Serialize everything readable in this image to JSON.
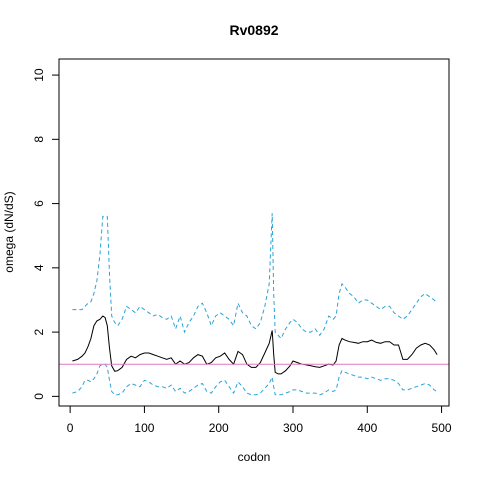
{
  "chart_data": {
    "type": "line",
    "title": "Rv0892",
    "xlabel": "codon",
    "ylabel": "omega (dN/dS)",
    "xlim": [
      -15,
      510
    ],
    "ylim": [
      -0.3,
      10.5
    ],
    "x_ticks": [
      0,
      100,
      200,
      300,
      400,
      500
    ],
    "y_ticks": [
      0,
      2,
      4,
      6,
      8,
      10
    ],
    "reference_line": {
      "y": 1,
      "color": "#e377c2"
    },
    "colors": {
      "omega": "#000000",
      "bounds": "#29a3d9"
    },
    "series": [
      {
        "style": "solid",
        "x": [
          3,
          10,
          16,
          20,
          24,
          28,
          32,
          36,
          40,
          44,
          47,
          50,
          53,
          56,
          60,
          64,
          70,
          76,
          82,
          88,
          94,
          100,
          106,
          112,
          118,
          124,
          130,
          136,
          142,
          148,
          154,
          160,
          166,
          172,
          178,
          184,
          190,
          196,
          202,
          208,
          214,
          220,
          226,
          232,
          238,
          244,
          250,
          256,
          262,
          268,
          272,
          274,
          276,
          280,
          284,
          290,
          296,
          300,
          306,
          312,
          318,
          324,
          330,
          336,
          342,
          348,
          354,
          358,
          362,
          366,
          370,
          376,
          382,
          388,
          394,
          400,
          406,
          412,
          418,
          424,
          430,
          436,
          442,
          448,
          454,
          460,
          466,
          472,
          478,
          484,
          490,
          494
        ],
        "y": [
          1.1,
          1.15,
          1.25,
          1.35,
          1.55,
          1.8,
          2.2,
          2.35,
          2.4,
          2.5,
          2.45,
          2.2,
          1.5,
          0.95,
          0.78,
          0.8,
          0.9,
          1.15,
          1.25,
          1.2,
          1.3,
          1.35,
          1.35,
          1.3,
          1.25,
          1.2,
          1.15,
          1.2,
          1.0,
          1.1,
          1.0,
          1.05,
          1.2,
          1.3,
          1.25,
          1.0,
          1.05,
          1.2,
          1.25,
          1.35,
          1.15,
          1.0,
          1.4,
          1.3,
          1.0,
          0.9,
          0.9,
          1.05,
          1.35,
          1.65,
          2.05,
          1.3,
          0.75,
          0.7,
          0.7,
          0.8,
          0.95,
          1.1,
          1.05,
          1.0,
          0.98,
          0.95,
          0.92,
          0.9,
          0.95,
          1.0,
          0.98,
          1.1,
          1.6,
          1.8,
          1.75,
          1.7,
          1.68,
          1.65,
          1.7,
          1.7,
          1.75,
          1.68,
          1.65,
          1.7,
          1.7,
          1.6,
          1.6,
          1.15,
          1.15,
          1.3,
          1.5,
          1.6,
          1.65,
          1.6,
          1.45,
          1.3
        ]
      },
      {
        "style": "dashed",
        "x": [
          3,
          10,
          16,
          20,
          24,
          28,
          32,
          36,
          40,
          44,
          47,
          50,
          53,
          56,
          60,
          64,
          70,
          76,
          82,
          88,
          94,
          100,
          106,
          112,
          118,
          124,
          130,
          136,
          142,
          148,
          154,
          160,
          166,
          172,
          178,
          184,
          190,
          196,
          202,
          208,
          214,
          220,
          226,
          232,
          238,
          244,
          250,
          256,
          262,
          268,
          272,
          274,
          276,
          280,
          284,
          290,
          296,
          300,
          306,
          312,
          318,
          324,
          330,
          336,
          342,
          348,
          354,
          358,
          362,
          366,
          370,
          376,
          382,
          388,
          394,
          400,
          406,
          412,
          418,
          424,
          430,
          436,
          442,
          448,
          454,
          460,
          466,
          472,
          478,
          484,
          490,
          494
        ],
        "y": [
          2.7,
          2.7,
          2.7,
          2.8,
          2.9,
          2.95,
          3.2,
          3.6,
          4.4,
          5.6,
          5.6,
          5.6,
          3.8,
          2.5,
          2.3,
          2.2,
          2.4,
          2.8,
          2.7,
          2.6,
          2.8,
          2.7,
          2.6,
          2.5,
          2.55,
          2.45,
          2.4,
          2.5,
          2.1,
          2.5,
          2.0,
          2.3,
          2.5,
          2.8,
          2.9,
          2.6,
          2.2,
          2.5,
          2.6,
          2.5,
          2.4,
          2.2,
          2.9,
          2.6,
          2.5,
          2.2,
          2.1,
          2.3,
          2.8,
          3.5,
          5.7,
          3.2,
          2.0,
          1.9,
          1.8,
          2.1,
          2.3,
          2.4,
          2.3,
          2.1,
          2.0,
          2.0,
          2.1,
          1.9,
          2.1,
          2.5,
          2.4,
          2.5,
          3.2,
          3.5,
          3.4,
          3.2,
          3.1,
          2.9,
          3.0,
          3.0,
          2.9,
          2.8,
          2.7,
          2.8,
          2.8,
          2.6,
          2.5,
          2.4,
          2.5,
          2.7,
          2.9,
          3.1,
          3.2,
          3.1,
          3.0,
          2.9
        ]
      },
      {
        "style": "dashed",
        "x": [
          3,
          10,
          16,
          20,
          24,
          28,
          32,
          36,
          40,
          44,
          47,
          50,
          53,
          56,
          60,
          64,
          70,
          76,
          82,
          88,
          94,
          100,
          106,
          112,
          118,
          124,
          130,
          136,
          142,
          148,
          154,
          160,
          166,
          172,
          178,
          184,
          190,
          196,
          202,
          208,
          214,
          220,
          226,
          232,
          238,
          244,
          250,
          256,
          262,
          268,
          272,
          274,
          276,
          280,
          284,
          290,
          296,
          300,
          306,
          312,
          318,
          324,
          330,
          336,
          342,
          348,
          354,
          358,
          362,
          366,
          370,
          376,
          382,
          388,
          394,
          400,
          406,
          412,
          418,
          424,
          430,
          436,
          442,
          448,
          454,
          460,
          466,
          472,
          478,
          484,
          490,
          494
        ],
        "y": [
          0.1,
          0.15,
          0.3,
          0.5,
          0.5,
          0.45,
          0.55,
          0.7,
          0.95,
          1.0,
          1.0,
          0.9,
          0.5,
          0.15,
          0.05,
          0.05,
          0.1,
          0.3,
          0.4,
          0.35,
          0.3,
          0.5,
          0.45,
          0.35,
          0.3,
          0.3,
          0.25,
          0.35,
          0.15,
          0.25,
          0.1,
          0.15,
          0.25,
          0.35,
          0.4,
          0.15,
          0.1,
          0.3,
          0.45,
          0.5,
          0.3,
          0.1,
          0.45,
          0.3,
          0.1,
          0.05,
          0.05,
          0.1,
          0.25,
          0.4,
          0.6,
          0.3,
          0.05,
          0.05,
          0.05,
          0.1,
          0.15,
          0.2,
          0.2,
          0.15,
          0.1,
          0.1,
          0.1,
          0.05,
          0.1,
          0.2,
          0.15,
          0.2,
          0.6,
          0.8,
          0.75,
          0.7,
          0.65,
          0.6,
          0.6,
          0.55,
          0.6,
          0.55,
          0.5,
          0.55,
          0.55,
          0.5,
          0.4,
          0.2,
          0.2,
          0.25,
          0.3,
          0.35,
          0.4,
          0.35,
          0.2,
          0.15
        ]
      }
    ]
  }
}
